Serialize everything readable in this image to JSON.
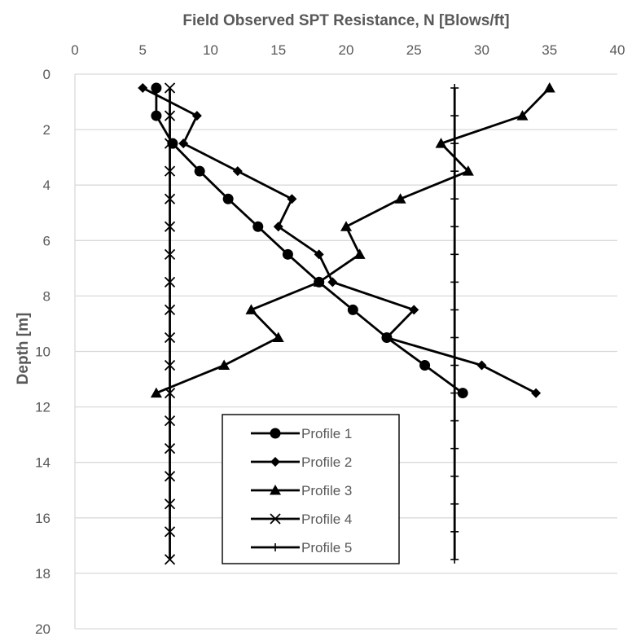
{
  "chart_data": {
    "type": "line",
    "title": "",
    "xlabel": "Field Observed SPT Resistance, N [Blows/ft]",
    "ylabel": "Depth [m]",
    "x_axis_position": "top",
    "y_axis_inverted": true,
    "xlim": [
      0,
      40
    ],
    "ylim": [
      0,
      20
    ],
    "xticks": [
      "0",
      "5",
      "10",
      "15",
      "20",
      "25",
      "30",
      "35",
      "40"
    ],
    "yticks": [
      "0",
      "2",
      "4",
      "6",
      "8",
      "10",
      "12",
      "14",
      "16",
      "18",
      "20"
    ],
    "grid": "horizontal",
    "legend_position": "center-bottom",
    "series_color": "#000000",
    "series": [
      {
        "name": "Profile 1",
        "marker": "circle",
        "points": [
          [
            6,
            0.5
          ],
          [
            6,
            1.5
          ],
          [
            7.2,
            2.5
          ],
          [
            9.2,
            3.5
          ],
          [
            11.3,
            4.5
          ],
          [
            13.5,
            5.5
          ],
          [
            15.7,
            6.5
          ],
          [
            18,
            7.5
          ],
          [
            20.5,
            8.5
          ],
          [
            23,
            9.5
          ],
          [
            25.8,
            10.5
          ],
          [
            28.6,
            11.5
          ]
        ]
      },
      {
        "name": "Profile 2",
        "marker": "diamond",
        "points": [
          [
            5,
            0.5
          ],
          [
            9,
            1.5
          ],
          [
            8,
            2.5
          ],
          [
            12,
            3.5
          ],
          [
            16,
            4.5
          ],
          [
            15,
            5.5
          ],
          [
            18,
            6.5
          ],
          [
            19,
            7.5
          ],
          [
            25,
            8.5
          ],
          [
            23,
            9.5
          ],
          [
            30,
            10.5
          ],
          [
            34,
            11.5
          ]
        ]
      },
      {
        "name": "Profile 3",
        "marker": "triangle",
        "points": [
          [
            35,
            0.5
          ],
          [
            33,
            1.5
          ],
          [
            27,
            2.5
          ],
          [
            29,
            3.5
          ],
          [
            24,
            4.5
          ],
          [
            20,
            5.5
          ],
          [
            21,
            6.5
          ],
          [
            18,
            7.5
          ],
          [
            13,
            8.5
          ],
          [
            15,
            9.5
          ],
          [
            11,
            10.5
          ],
          [
            6,
            11.5
          ]
        ]
      },
      {
        "name": "Profile 4",
        "marker": "x",
        "points": [
          [
            7,
            0.5
          ],
          [
            7,
            1.5
          ],
          [
            7,
            2.5
          ],
          [
            7,
            3.5
          ],
          [
            7,
            4.5
          ],
          [
            7,
            5.5
          ],
          [
            7,
            6.5
          ],
          [
            7,
            7.5
          ],
          [
            7,
            8.5
          ],
          [
            7,
            9.5
          ],
          [
            7,
            10.5
          ],
          [
            7,
            11.5
          ],
          [
            7,
            12.5
          ],
          [
            7,
            13.5
          ],
          [
            7,
            14.5
          ],
          [
            7,
            15.5
          ],
          [
            7,
            16.5
          ],
          [
            7,
            17.5
          ]
        ]
      },
      {
        "name": "Profile 5",
        "marker": "plus",
        "points": [
          [
            28,
            0.5
          ],
          [
            28,
            1.5
          ],
          [
            28,
            2.5
          ],
          [
            28,
            3.5
          ],
          [
            28,
            4.5
          ],
          [
            28,
            5.5
          ],
          [
            28,
            6.5
          ],
          [
            28,
            7.5
          ],
          [
            28,
            8.5
          ],
          [
            28,
            9.5
          ],
          [
            28,
            10.5
          ],
          [
            28,
            11.5
          ],
          [
            28,
            12.5
          ],
          [
            28,
            13.5
          ],
          [
            28,
            14.5
          ],
          [
            28,
            15.5
          ],
          [
            28,
            16.5
          ],
          [
            28,
            17.5
          ]
        ]
      }
    ]
  }
}
